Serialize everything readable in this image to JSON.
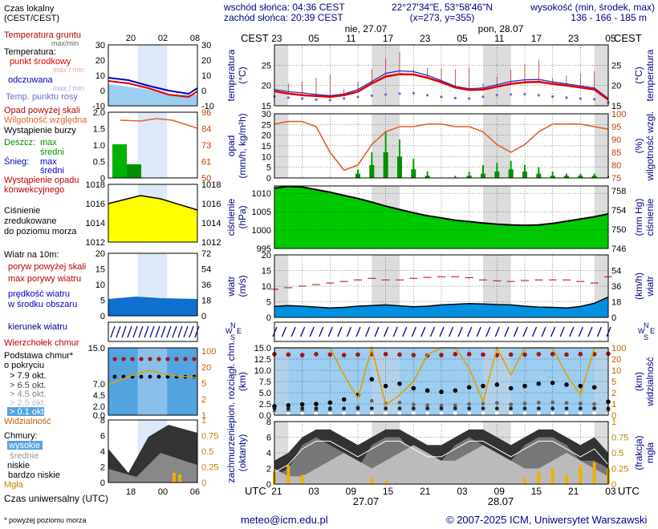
{
  "header": {
    "sunrise": "wschód słońca: 04:36 CEST",
    "sunset": "zachód słońca: 20:39 CEST",
    "coords": "22°27'34\"E, 53°58'46\"N",
    "grid": "(x=273, y=355)",
    "elev_title": "wysokość (min, środek, max)",
    "elev_values": "136 - 166 - 185 m",
    "tz": "CEST",
    "day1": "nie, 27.07",
    "day2": "pon, 28.07",
    "utc": "UTC",
    "date1": "27.07",
    "date2": "28.07"
  },
  "legend": {
    "local_time": "Czas lokalny",
    "local_time2": "(CEST/CEST)",
    "soil_temp": "Temperatura gruntu",
    "soil_minmax": "max/min",
    "temperature": "Temperatura:",
    "mid_point": "punkt środkowy",
    "max_min": "max / min",
    "apparent": "odczuwana",
    "apparent_minmax": "max / min",
    "dew_point": "Temp. punktu rosy",
    "precip_above": "Opad powyżej skali",
    "humidity": "Wilgotność względna",
    "storm": "Wystąpienie burzy",
    "rain": "Deszcz:",
    "rain_max": "max",
    "rain_mid": "średni",
    "snow": "Śnieg:",
    "snow_max": "max",
    "snow_mid": "średni",
    "precip_conv1": "Wystąpienie opadu",
    "precip_conv2": "konwekcyjnego",
    "pressure1": "Ciśnienie",
    "pressure2": "zredukowane",
    "pressure3": "do poziomu morza",
    "wind_title": "Wiatr na 10m:",
    "gust_above": "poryw powyżej skali",
    "gust_max": "max porywy wiatru",
    "wind_mean1": "prędkość wiatru",
    "wind_mean2": "w środku obszaru",
    "wind_dir": "kierunek wiatru",
    "cloud_top": "Wierzchołek chmur",
    "cloud_base1": "Podstawa chmur*",
    "cloud_base2": "o pokryciu",
    "okt79": "> 7.9 okt.",
    "okt65": "> 6.5 okt.",
    "okt45": "> 4.5 okt.",
    "okt25": "> 2.5 okt.",
    "okt01": "> 0.1 okt.",
    "visibility": "Widzialność",
    "clouds": "Chmury:",
    "high": "wysokie",
    "mid": "średnie",
    "low": "niskie",
    "very_low": "bardzo niskie",
    "fog": "Mgła",
    "utc_time": "Czas uniwersalny (UTC)",
    "footnote": "* powyżej poziomu morza"
  },
  "axis_titles": {
    "temp_l": [
      "temperatura",
      "(°C)"
    ],
    "temp_r": [
      "(°C)",
      "temperatura"
    ],
    "prec_l": [
      "opad",
      "(mm/h, kg/m²h)"
    ],
    "prec_r": [
      "(%)",
      "wilgotność wzgl."
    ],
    "pres_l": [
      "ciśnienie",
      "(hPa)"
    ],
    "pres_r": [
      "(mm Hg)",
      "ciśnienie"
    ],
    "wind_l": [
      "wiatr",
      "(m/s)"
    ],
    "wind_r": [
      "(km/h)",
      "wiatr"
    ],
    "cb_l": [
      "pion. rozciągł. chm.",
      "(km)"
    ],
    "cb_r": [
      "(km)",
      "widzialność"
    ],
    "cl_l": [
      "zachmurzenie",
      "(oktanty)"
    ],
    "cl_r": [
      "(frakcja)",
      "mgła"
    ]
  },
  "small_ticks": {
    "local_hours": [
      "20",
      "02",
      "08"
    ],
    "utc_hours": [
      "18",
      "00",
      "06"
    ]
  },
  "footer": {
    "email": "meteo@icm.edu.pl",
    "copyright": "© 2007-2025 ICM, Uniwersytet Warszawski"
  },
  "colors": {
    "blue_title": "#00008b",
    "temp_line": "#e00000",
    "dew_point": "#6a6adc",
    "humidity": "#e0602a",
    "pressure_fill": "#00c800",
    "wind_fill": "#0090e0",
    "gust": "#c00000",
    "sky": "#9dcdf0"
  },
  "chart_data": [
    {
      "type": "line",
      "title": "temperatura",
      "ylabel": "temperatura (°C)",
      "ylim": [
        15,
        30
      ],
      "x_local_ticks": [
        "23",
        "05",
        "11",
        "17",
        "23",
        "05",
        "11",
        "17",
        "23",
        "05"
      ],
      "x_utc_ticks": [
        "21",
        "03",
        "09",
        "15",
        "21",
        "03",
        "09",
        "15",
        "21",
        "03"
      ],
      "x_hours_utc": [
        0,
        3,
        6,
        9,
        12,
        15,
        18,
        21,
        24,
        27,
        30,
        33,
        36,
        39,
        42,
        45,
        48,
        51,
        54,
        57,
        60,
        63,
        66,
        69,
        72
      ],
      "series": [
        {
          "name": "punkt środkowy",
          "values": [
            18.6,
            18.0,
            17.6,
            17.4,
            17.2,
            17.6,
            18.5,
            20.5,
            22.2,
            22.8,
            22.7,
            21.9,
            20.8,
            19.5,
            18.9,
            19.0,
            19.7,
            20.4,
            20.8,
            20.9,
            20.4,
            20.0,
            19.5,
            19.0,
            16.5
          ]
        },
        {
          "name": "Temp. punktu rosy",
          "values": [
            17.3,
            17.0,
            16.8,
            16.5,
            16.4,
            16.8,
            17.2,
            17.5,
            17.8,
            18.0,
            18.1,
            17.6,
            17.2,
            16.9,
            16.8,
            17.2,
            17.6,
            17.8,
            17.9,
            17.6,
            17.3,
            17.0,
            16.8,
            16.6,
            15.8
          ]
        },
        {
          "name": "odczuwana",
          "values": [
            19.0,
            18.5,
            18.2,
            17.8,
            17.5,
            17.9,
            19.0,
            21.0,
            23.0,
            23.6,
            23.4,
            22.5,
            21.2,
            19.8,
            19.2,
            19.4,
            20.2,
            21.0,
            21.4,
            21.5,
            20.9,
            20.4,
            19.9,
            19.4,
            16.8
          ]
        }
      ]
    },
    {
      "type": "bar",
      "title": "opad",
      "ylabel": "opad (mm/h, kg/m²h)",
      "ylim": [
        0,
        30
      ],
      "y2label": "wilgotność wzgl. (%)",
      "y2lim": [
        75,
        100
      ],
      "x_hours_utc": [
        0,
        3,
        6,
        9,
        12,
        15,
        18,
        21,
        24,
        27,
        30,
        33,
        36,
        39,
        42,
        45,
        48,
        51,
        54,
        57,
        60,
        63,
        66,
        69,
        72
      ],
      "series": [
        {
          "name": "Deszcz: średni",
          "values": [
            0,
            0,
            0,
            0,
            0,
            0,
            2,
            6,
            12,
            10,
            4,
            1,
            0,
            0,
            1,
            2,
            3,
            4,
            3,
            2,
            1,
            1,
            1,
            1,
            0
          ]
        },
        {
          "name": "Deszcz: max",
          "values": [
            0,
            0,
            0,
            0,
            0,
            0,
            4,
            12,
            22,
            18,
            9,
            3,
            0,
            1,
            3,
            6,
            7,
            8,
            6,
            5,
            3,
            2,
            2,
            2,
            1
          ]
        },
        {
          "name": "Wilgotność względna",
          "values": [
            96,
            97,
            97,
            95,
            85,
            78,
            80,
            88,
            93,
            95,
            95,
            96,
            96,
            95,
            95,
            93,
            88,
            85,
            88,
            93,
            96,
            96,
            96,
            95,
            94
          ]
        }
      ]
    },
    {
      "type": "area",
      "title": "ciśnienie",
      "ylabel": "ciśnienie (hPa)",
      "ylim": [
        995,
        1012
      ],
      "y2label": "ciśnienie (mm Hg)",
      "y2lim": [
        746,
        759
      ],
      "x_hours_utc": [
        0,
        3,
        6,
        9,
        12,
        15,
        18,
        21,
        24,
        27,
        30,
        33,
        36,
        39,
        42,
        45,
        48,
        51,
        54,
        57,
        60,
        63,
        66,
        69,
        72
      ],
      "values": [
        1011.4,
        1011.9,
        1011.7,
        1011.0,
        1010.3,
        1009.4,
        1008.6,
        1007.6,
        1006.5,
        1005.6,
        1004.7,
        1003.9,
        1003.3,
        1002.7,
        1002.3,
        1001.9,
        1001.6,
        1001.4,
        1001.3,
        1001.4,
        1001.8,
        1002.4,
        1003.0,
        1003.6,
        1004.4
      ]
    },
    {
      "type": "area",
      "title": "wiatr",
      "ylabel": "wiatr (m/s)",
      "ylim": [
        0,
        20
      ],
      "y2label": "wiatr (km/h)",
      "y2lim": [
        0,
        72
      ],
      "x_hours_utc": [
        0,
        3,
        6,
        9,
        12,
        15,
        18,
        21,
        24,
        27,
        30,
        33,
        36,
        39,
        42,
        45,
        48,
        51,
        54,
        57,
        60,
        63,
        66,
        69,
        72
      ],
      "series": [
        {
          "name": "prędkość wiatru",
          "values": [
            3.5,
            3.8,
            3.6,
            3.3,
            3.0,
            3.2,
            3.6,
            3.8,
            4.0,
            3.7,
            3.4,
            3.6,
            4.0,
            4.2,
            4.4,
            4.3,
            4.1,
            4.0,
            3.6,
            3.3,
            3.2,
            3.0,
            3.5,
            4.5,
            6.5
          ]
        },
        {
          "name": "max porywy wiatru",
          "values": [
            9,
            9.5,
            10,
            10.5,
            11,
            11.5,
            12,
            12.5,
            12,
            12,
            12.5,
            12.8,
            13,
            13,
            12.7,
            12,
            11.7,
            11.5,
            11.8,
            12,
            12,
            12,
            11.5,
            11,
            13
          ]
        }
      ]
    },
    {
      "type": "scatter",
      "title": "pion. rozciągł. chm.",
      "ylabel": "pion. rozciągł. chm. (km)",
      "ylim": [
        0,
        15
      ],
      "y2label": "widzialność (km)",
      "y2lim": [
        0,
        100
      ],
      "x_hours_utc": [
        0,
        3,
        6,
        9,
        12,
        15,
        18,
        21,
        24,
        27,
        30,
        33,
        36,
        39,
        42,
        45,
        48,
        51,
        54,
        57,
        60,
        63,
        66,
        69,
        72
      ],
      "series": [
        {
          "name": "Wierzchołek chmur",
          "values": [
            13.6,
            13.5,
            13.4,
            13.6,
            13.5,
            13.4,
            13.5,
            13.6,
            13.6,
            13.5,
            13.4,
            13.3,
            13.4,
            13.6,
            13.6,
            13.5,
            13.4,
            13.5,
            13.5,
            13.6,
            13.6,
            13.5,
            13.6,
            13.6,
            13.7
          ]
        },
        {
          "name": "Podstawa chmur > 7.9 okt.",
          "values": [
            2.0,
            2.2,
            2.4,
            2.5,
            2.8,
            3.5,
            4.5,
            8.0,
            6.5,
            7.0,
            6.0,
            5.5,
            5.2,
            5.5,
            6.2,
            6.5,
            6.8,
            6.0,
            6.5,
            7.0,
            7.2,
            6.8,
            6.5,
            6.2,
            3.0
          ]
        },
        {
          "name": "Widzialność",
          "values": [
            20,
            20,
            20,
            20,
            20,
            12,
            5,
            20,
            3,
            6,
            10,
            18,
            20,
            20,
            14,
            4,
            20,
            12,
            20,
            20,
            20,
            12,
            6,
            20,
            20
          ]
        }
      ]
    },
    {
      "type": "area",
      "title": "zachmurzenie",
      "ylabel": "zachmurzenie (oktanty)",
      "ylim": [
        0,
        8
      ],
      "y2label": "mgła (frakcja)",
      "y2lim": [
        0,
        1
      ],
      "x_hours_utc": [
        0,
        3,
        6,
        9,
        12,
        15,
        18,
        21,
        24,
        27,
        30,
        33,
        36,
        39,
        42,
        45,
        48,
        51,
        54,
        57,
        60,
        63,
        66,
        69,
        72
      ],
      "series": [
        {
          "name": "wysokie",
          "values": [
            3,
            4,
            6,
            7,
            7,
            6,
            5,
            6,
            7,
            7,
            6,
            5,
            5,
            6,
            7,
            7,
            6,
            5,
            6,
            7,
            7,
            6,
            5,
            6,
            4
          ]
        },
        {
          "name": "średnie",
          "values": [
            1,
            2,
            5,
            6,
            5,
            4,
            2,
            5,
            6,
            6,
            4,
            2,
            3,
            5,
            6,
            5,
            4,
            3,
            5,
            6,
            6,
            5,
            3,
            3,
            2
          ]
        },
        {
          "name": "niskie",
          "values": [
            2,
            1,
            1,
            2,
            3,
            4,
            3,
            2,
            3,
            4,
            5,
            4,
            3,
            3,
            4,
            5,
            4,
            3,
            2,
            2,
            3,
            4,
            3,
            2,
            1
          ]
        },
        {
          "name": "Mgła",
          "values": [
            0.2,
            0.3,
            0.15,
            0,
            0,
            0,
            0,
            0.1,
            0.05,
            0,
            0,
            0,
            0,
            0,
            0,
            0,
            0,
            0,
            0.1,
            0.2,
            0.25,
            0.15,
            0.3,
            0.35,
            0.25
          ]
        }
      ]
    }
  ]
}
